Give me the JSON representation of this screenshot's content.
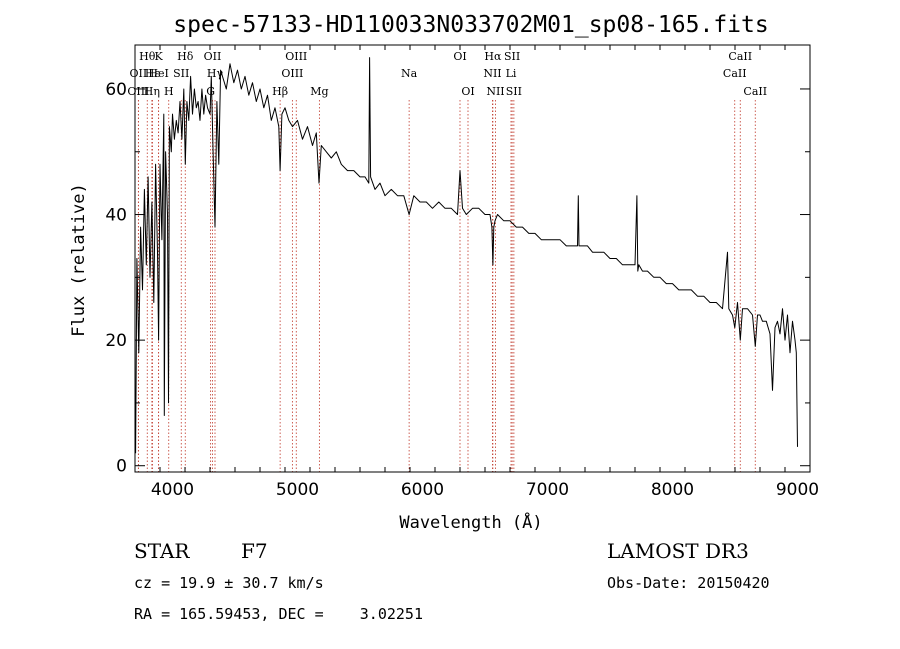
{
  "chart_data": {
    "type": "line",
    "title": "spec-57133-HD110033N033702M01_sp08-165.fits",
    "xlabel": "Wavelength (Å)",
    "ylabel": "Flux (relative)",
    "xlim": [
      3700,
      9100
    ],
    "ylim": [
      -1,
      67
    ],
    "x_ticks": [
      4000,
      5000,
      6000,
      7000,
      8000,
      9000
    ],
    "x_tick_labels": [
      "4000",
      "5000",
      "6000",
      "7000",
      "8000",
      "9000"
    ],
    "y_ticks": [
      0,
      20,
      40,
      60
    ],
    "y_tick_labels": [
      "0",
      "20",
      "40",
      "60"
    ],
    "grid": false,
    "series": [
      {
        "name": "flux",
        "x": [
          3705,
          3715,
          3730,
          3745,
          3760,
          3775,
          3790,
          3805,
          3820,
          3835,
          3850,
          3865,
          3880,
          3889,
          3900,
          3915,
          3930,
          3934,
          3945,
          3960,
          3968,
          3975,
          3990,
          4000,
          4015,
          4030,
          4045,
          4060,
          4075,
          4090,
          4102,
          4115,
          4130,
          4145,
          4160,
          4175,
          4190,
          4205,
          4220,
          4235,
          4250,
          4265,
          4280,
          4300,
          4310,
          4325,
          4340,
          4355,
          4370,
          4385,
          4400,
          4430,
          4460,
          4490,
          4520,
          4550,
          4580,
          4610,
          4640,
          4670,
          4700,
          4730,
          4760,
          4790,
          4820,
          4850,
          4861,
          4875,
          4900,
          4930,
          4960,
          5000,
          5040,
          5080,
          5120,
          5150,
          5172,
          5190,
          5230,
          5270,
          5310,
          5350,
          5400,
          5450,
          5500,
          5540,
          5570,
          5577,
          5585,
          5620,
          5660,
          5700,
          5750,
          5800,
          5850,
          5893,
          5930,
          5980,
          6030,
          6080,
          6130,
          6180,
          6230,
          6280,
          6300,
          6320,
          6350,
          6400,
          6450,
          6500,
          6540,
          6555,
          6563,
          6570,
          6580,
          6600,
          6650,
          6700,
          6750,
          6800,
          6850,
          6900,
          6950,
          7000,
          7050,
          7100,
          7150,
          7200,
          7240,
          7246,
          7252,
          7280,
          7320,
          7360,
          7400,
          7450,
          7500,
          7550,
          7600,
          7650,
          7700,
          7715,
          7722,
          7730,
          7760,
          7800,
          7850,
          7900,
          7950,
          8000,
          8050,
          8100,
          8150,
          8200,
          8250,
          8300,
          8350,
          8400,
          8440,
          8450,
          8480,
          8498,
          8520,
          8542,
          8560,
          8600,
          8640,
          8662,
          8680,
          8700,
          8720,
          8750,
          8780,
          8800,
          8820,
          8840,
          8860,
          8880,
          8900,
          8920,
          8940,
          8960,
          8980,
          8990,
          9000
        ],
        "values": [
          2,
          33,
          18,
          38,
          28,
          44,
          32,
          46,
          30,
          42,
          26,
          48,
          34,
          20,
          48,
          36,
          56,
          8,
          50,
          40,
          10,
          54,
          50,
          56,
          52,
          55,
          53,
          58,
          52,
          60,
          48,
          58,
          55,
          62,
          56,
          60,
          57,
          58,
          55,
          60,
          56,
          59,
          57,
          56,
          62,
          50,
          38,
          58,
          48,
          63,
          62,
          60,
          64,
          61,
          63,
          60,
          62,
          59,
          61,
          58,
          60,
          57,
          59,
          55,
          57,
          54,
          47,
          56,
          57,
          55,
          54,
          55,
          52,
          54,
          51,
          53,
          45,
          51,
          50,
          49,
          50,
          48,
          47,
          47,
          46,
          46,
          45,
          65,
          46,
          44,
          45,
          43,
          44,
          43,
          43,
          40,
          43,
          42,
          42,
          41,
          42,
          41,
          41,
          40,
          47,
          41,
          40,
          41,
          41,
          40,
          40,
          38,
          32,
          38,
          39,
          40,
          39,
          39,
          38,
          38,
          37,
          37,
          36,
          36,
          36,
          36,
          35,
          35,
          35,
          43,
          35,
          35,
          35,
          34,
          34,
          34,
          33,
          33,
          32,
          32,
          32,
          43,
          31,
          32,
          31,
          31,
          30,
          30,
          29,
          29,
          28,
          28,
          28,
          27,
          27,
          26,
          26,
          25,
          34,
          25,
          24,
          22,
          26,
          20,
          25,
          25,
          24,
          19,
          24,
          24,
          23,
          23,
          21,
          12,
          22,
          23,
          21,
          25,
          20,
          24,
          18,
          23,
          20,
          18,
          3
        ]
      }
    ],
    "spectral_lines": [
      {
        "label": "Hθ",
        "x": 3798,
        "row": 1
      },
      {
        "label": "OII",
        "x": 3727,
        "row": 2
      },
      {
        "label": "OIII",
        "x": 3727,
        "row": 3
      },
      {
        "label": "Hε",
        "x": 3840,
        "row": 2
      },
      {
        "label": "Hη",
        "x": 3835,
        "row": 3
      },
      {
        "label": "K",
        "x": 3889,
        "row": 1
      },
      {
        "label": "HeI",
        "x": 3889,
        "row": 2
      },
      {
        "label": "H",
        "x": 3970,
        "row": 3
      },
      {
        "label": "SII",
        "x": 4070,
        "row": 2
      },
      {
        "label": "Hδ",
        "x": 4102,
        "row": 1
      },
      {
        "label": "OII",
        "x": 4320,
        "row": 1
      },
      {
        "label": "Hγ",
        "x": 4340,
        "row": 2
      },
      {
        "label": "G",
        "x": 4305,
        "row": 3
      },
      {
        "label": "Hβ",
        "x": 4861,
        "row": 3
      },
      {
        "label": "OIII",
        "x": 4990,
        "row": 1
      },
      {
        "label": "OIII",
        "x": 4959,
        "row": 2
      },
      {
        "label": "Mg",
        "x": 5175,
        "row": 3
      },
      {
        "label": "Na",
        "x": 5893,
        "row": 2
      },
      {
        "label": "OI",
        "x": 6300,
        "row": 1
      },
      {
        "label": "OI",
        "x": 6364,
        "row": 3
      },
      {
        "label": "Hα",
        "x": 6563,
        "row": 1
      },
      {
        "label": "NII",
        "x": 6560,
        "row": 2
      },
      {
        "label": "NII",
        "x": 6584,
        "row": 3
      },
      {
        "label": "SII",
        "x": 6717,
        "row": 1
      },
      {
        "label": "Li",
        "x": 6708,
        "row": 2
      },
      {
        "label": "SII",
        "x": 6731,
        "row": 3
      },
      {
        "label": "CaII",
        "x": 8542,
        "row": 1
      },
      {
        "label": "CaII",
        "x": 8498,
        "row": 2
      },
      {
        "label": "CaII",
        "x": 8662,
        "row": 3
      }
    ]
  },
  "info": {
    "class_label": "STAR",
    "subclass": "F7",
    "survey": "LAMOST DR3",
    "cz": "cz = 19.9 ± 30.7 km/s",
    "obs_date": "Obs-Date: 20150420",
    "coords": "RA = 165.59453, DEC =    3.02251"
  }
}
